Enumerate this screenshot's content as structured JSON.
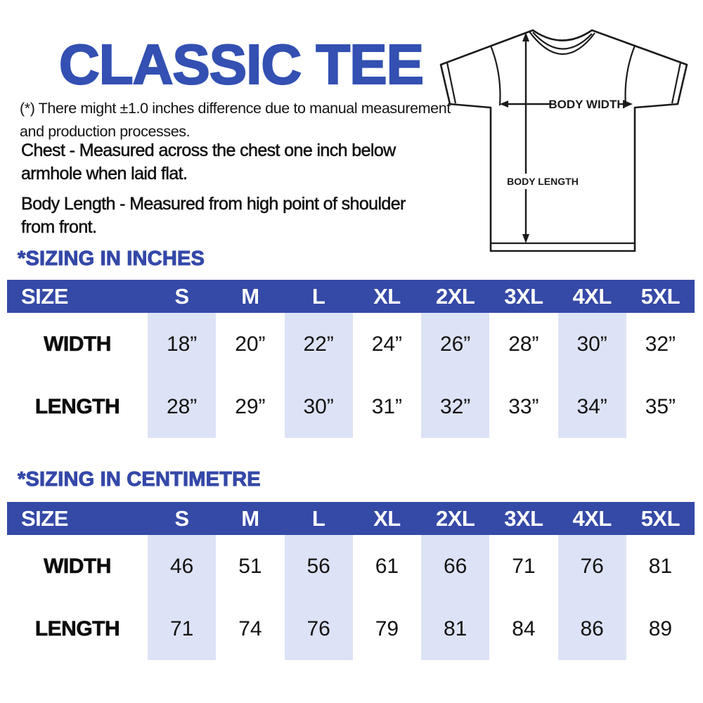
{
  "title": "CLASSIC TEE",
  "notes": {
    "disclaimer_lines": [
      "(*) There might ±1.0 inches difference due to manual measurement",
      "and production processes."
    ],
    "chest_lines": [
      "Chest - Measured across the chest one inch below",
      "armhole when laid flat."
    ],
    "body_length_lines": [
      "Body Length - Measured from high point of shoulder",
      "from front."
    ]
  },
  "diagram": {
    "body_width_label": "BODY WIDTH",
    "body_length_label": "BODY LENGTH"
  },
  "colors": {
    "title_blue": "#3350b2",
    "heading_blue": "#3448a8",
    "table_header_bg": "#3549a6",
    "stripe_bg": "#dde3f6",
    "text": "#131313",
    "diagram_line": "#1b1b1b"
  },
  "tables": [
    {
      "heading": "*SIZING IN INCHES",
      "columns": [
        "SIZE",
        "S",
        "M",
        "L",
        "XL",
        "2XL",
        "3XL",
        "4XL",
        "5XL"
      ],
      "rows": [
        {
          "label": "WIDTH",
          "values": [
            "18”",
            "20”",
            "22”",
            "24”",
            "26”",
            "28”",
            "30”",
            "32”"
          ]
        },
        {
          "label": "LENGTH",
          "values": [
            "28”",
            "29”",
            "30”",
            "31”",
            "32”",
            "33”",
            "34”",
            "35”"
          ]
        }
      ],
      "striped_value_columns": [
        0,
        2,
        4,
        6
      ]
    },
    {
      "heading": "*SIZING IN CENTIMETRE",
      "columns": [
        "SIZE",
        "S",
        "M",
        "L",
        "XL",
        "2XL",
        "3XL",
        "4XL",
        "5XL"
      ],
      "rows": [
        {
          "label": "WIDTH",
          "values": [
            "46",
            "51",
            "56",
            "61",
            "66",
            "71",
            "76",
            "81"
          ]
        },
        {
          "label": "LENGTH",
          "values": [
            "71",
            "74",
            "76",
            "79",
            "81",
            "84",
            "86",
            "89"
          ]
        }
      ],
      "striped_value_columns": [
        0,
        2,
        4,
        6
      ]
    }
  ]
}
